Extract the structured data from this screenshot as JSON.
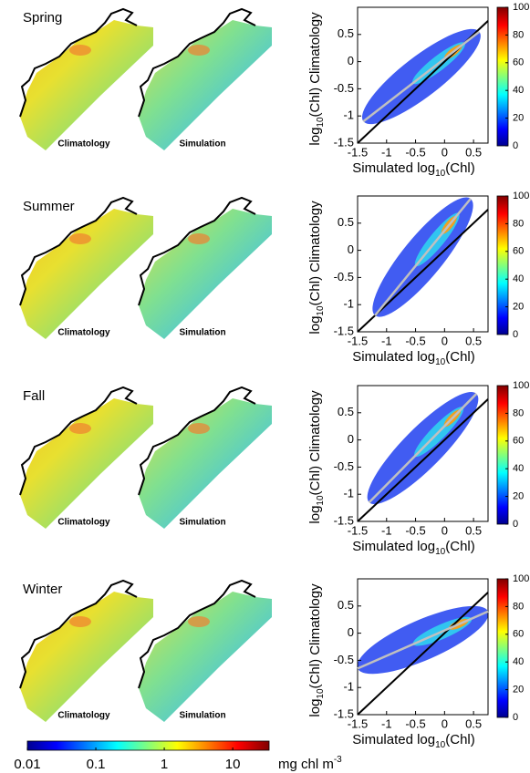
{
  "figure_colorbar": {
    "scale": "log",
    "lim": [
      0.01,
      34
    ],
    "ticks": [
      0.01,
      0.1,
      1,
      10
    ],
    "unit": [
      "mg chl m",
      "-3"
    ]
  },
  "chart_data": [
    {
      "type": "density",
      "title": "Spring",
      "map_labels": [
        "Climatology",
        "Simulation"
      ],
      "x_label": [
        "Simulated log",
        "10",
        "(Chl)"
      ],
      "y_label": [
        "log",
        "10",
        "(Chl) Climatology"
      ],
      "xlim": [
        -1.5,
        0.75
      ],
      "ylim": [
        -1.5,
        1
      ],
      "xticks": [
        -1.5,
        -1,
        -0.5,
        0,
        0.5
      ],
      "yticks": [
        -1.5,
        -1,
        -0.5,
        0,
        0.5
      ],
      "colorbar": {
        "lim": [
          0,
          100
        ],
        "ticks": [
          0,
          20,
          40,
          60,
          80,
          100
        ]
      },
      "identity_line": {
        "x": [
          -1.5,
          0.75
        ],
        "y": [
          -1.5,
          0.75
        ],
        "color": "#000000"
      },
      "fit_line": {
        "x": [
          -1.4,
          0.6
        ],
        "y": [
          -1.1,
          0.55
        ],
        "color": "#c0c0c0"
      }
    },
    {
      "type": "density",
      "title": "Summer",
      "map_labels": [
        "Climatology",
        "Simulation"
      ],
      "x_label": [
        "Simulated log",
        "10",
        "(Chl)"
      ],
      "y_label": [
        "log",
        "10",
        "(Chl) Climatology"
      ],
      "xlim": [
        -1.5,
        0.75
      ],
      "ylim": [
        -1.5,
        1
      ],
      "xticks": [
        -1.5,
        -1,
        -0.5,
        0,
        0.5
      ],
      "yticks": [
        -1.5,
        -1,
        -0.5,
        0,
        0.5
      ],
      "colorbar": {
        "lim": [
          0,
          100
        ],
        "ticks": [
          0,
          20,
          40,
          60,
          80,
          100
        ]
      },
      "identity_line": {
        "x": [
          -1.5,
          0.75
        ],
        "y": [
          -1.5,
          0.75
        ],
        "color": "#000000"
      },
      "fit_line": {
        "x": [
          -1.2,
          0.45
        ],
        "y": [
          -1.2,
          0.95
        ],
        "color": "#c0c0c0"
      }
    },
    {
      "type": "density",
      "title": "Fall",
      "map_labels": [
        "Climatology",
        "Simulation"
      ],
      "x_label": [
        "Simulated log",
        "10",
        "(Chl)"
      ],
      "y_label": [
        "log",
        "10",
        "(Chl) Climatology"
      ],
      "xlim": [
        -1.5,
        0.75
      ],
      "ylim": [
        -1.5,
        1
      ],
      "xticks": [
        -1.5,
        -1,
        -0.5,
        0,
        0.5
      ],
      "yticks": [
        -1.5,
        -1,
        -0.5,
        0,
        0.5
      ],
      "colorbar": {
        "lim": [
          0,
          100
        ],
        "ticks": [
          0,
          20,
          40,
          60,
          80,
          100
        ]
      },
      "identity_line": {
        "x": [
          -1.5,
          0.75
        ],
        "y": [
          -1.5,
          0.75
        ],
        "color": "#000000"
      },
      "fit_line": {
        "x": [
          -1.3,
          0.55
        ],
        "y": [
          -1.15,
          0.85
        ],
        "color": "#c0c0c0"
      }
    },
    {
      "type": "density",
      "title": "Winter",
      "map_labels": [
        "Climatology",
        "Simulation"
      ],
      "x_label": [
        "Simulated log",
        "10",
        "(Chl)"
      ],
      "y_label": [
        "log",
        "10",
        "(Chl) Climatology"
      ],
      "xlim": [
        -1.5,
        0.75
      ],
      "ylim": [
        -1.5,
        1
      ],
      "xticks": [
        -1.5,
        -1,
        -0.5,
        0,
        0.5
      ],
      "yticks": [
        -1.5,
        -1,
        -0.5,
        0,
        0.5
      ],
      "colorbar": {
        "lim": [
          0,
          100
        ],
        "ticks": [
          0,
          20,
          40,
          60,
          80,
          100
        ]
      },
      "identity_line": {
        "x": [
          -1.5,
          0.75
        ],
        "y": [
          -1.5,
          0.75
        ],
        "color": "#000000"
      },
      "fit_line": {
        "x": [
          -1.5,
          0.75
        ],
        "y": [
          -0.65,
          0.4
        ],
        "color": "#c0c0c0"
      }
    }
  ]
}
